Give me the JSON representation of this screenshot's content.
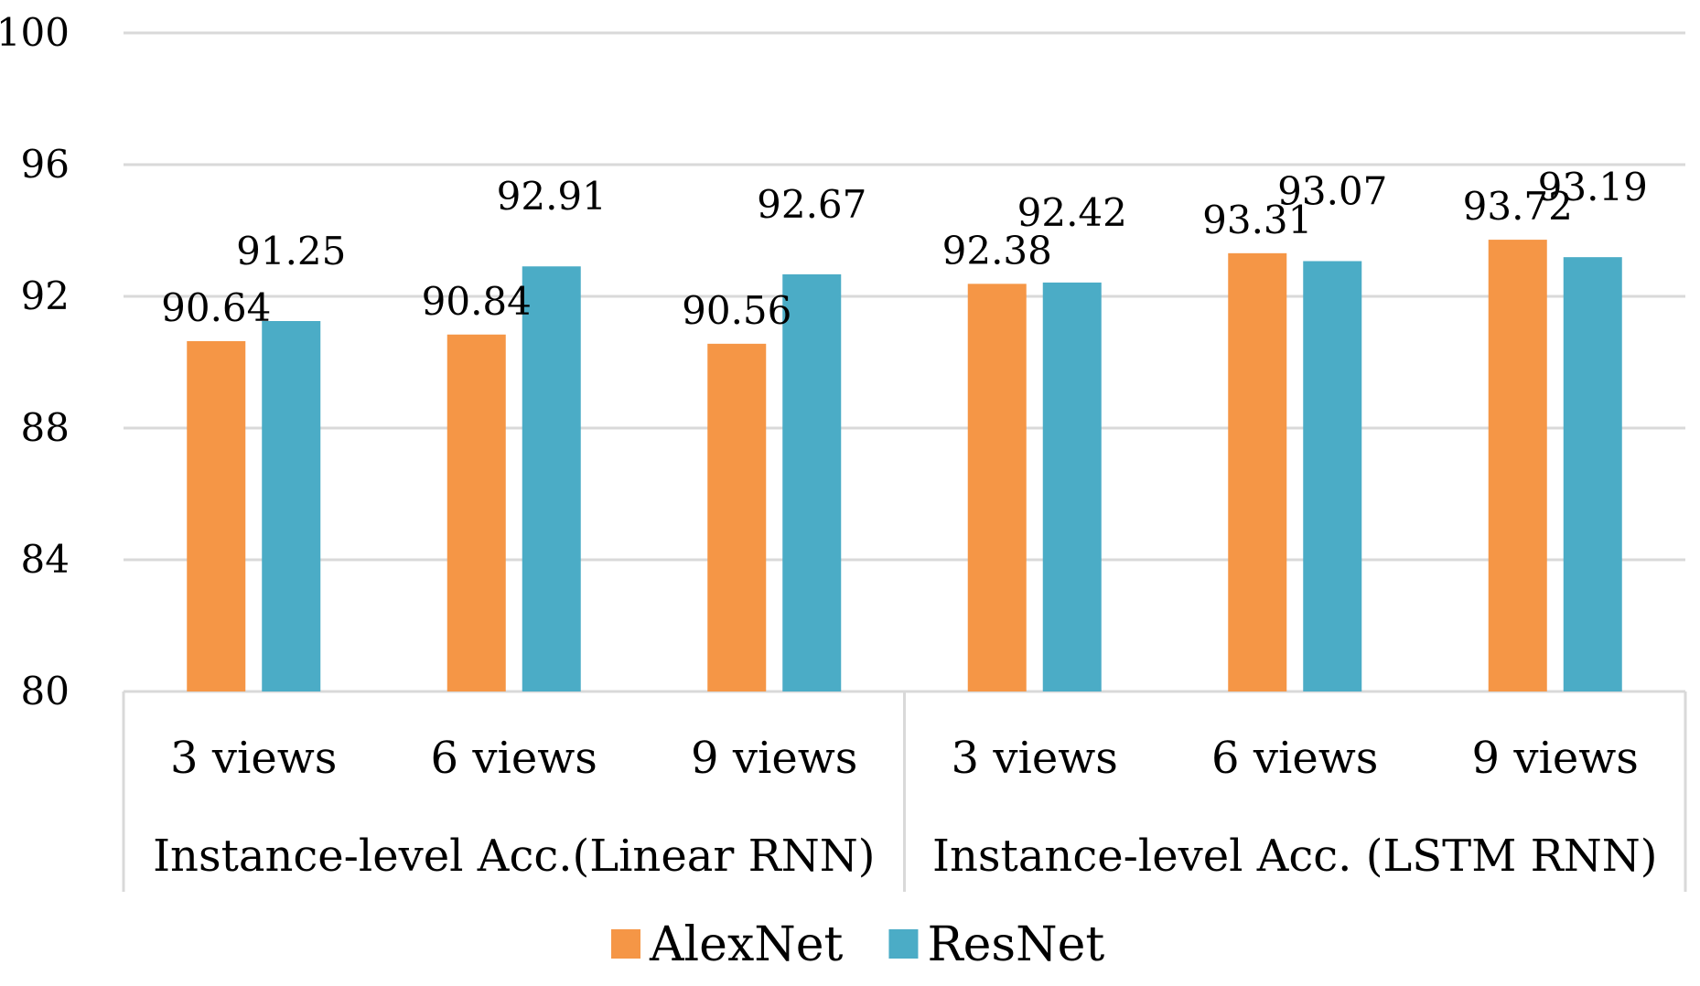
{
  "chart_data": {
    "type": "bar",
    "groups": [
      {
        "label": "Instance-level Acc.(Linear RNN)",
        "categories": [
          "3 views",
          "6 views",
          "9 views"
        ]
      },
      {
        "label": "Instance-level Acc. (LSTM RNN)",
        "categories": [
          "3 views",
          "6 views",
          "9 views"
        ]
      }
    ],
    "categories": [
      "3 views",
      "6 views",
      "9 views",
      "3 views",
      "6 views",
      "9 views"
    ],
    "series": [
      {
        "name": "AlexNet",
        "color": "#F59646",
        "values": [
          90.64,
          90.84,
          90.56,
          92.38,
          93.31,
          93.72
        ]
      },
      {
        "name": "ResNet",
        "color": "#4BACC6",
        "values": [
          91.25,
          92.91,
          92.67,
          92.42,
          93.07,
          93.19
        ]
      }
    ],
    "ylim": [
      80,
      100
    ],
    "yticks": [
      80,
      84,
      88,
      92,
      96,
      100
    ],
    "grid": true,
    "legend": "bottom",
    "title": "",
    "xlabel": "",
    "ylabel": ""
  }
}
